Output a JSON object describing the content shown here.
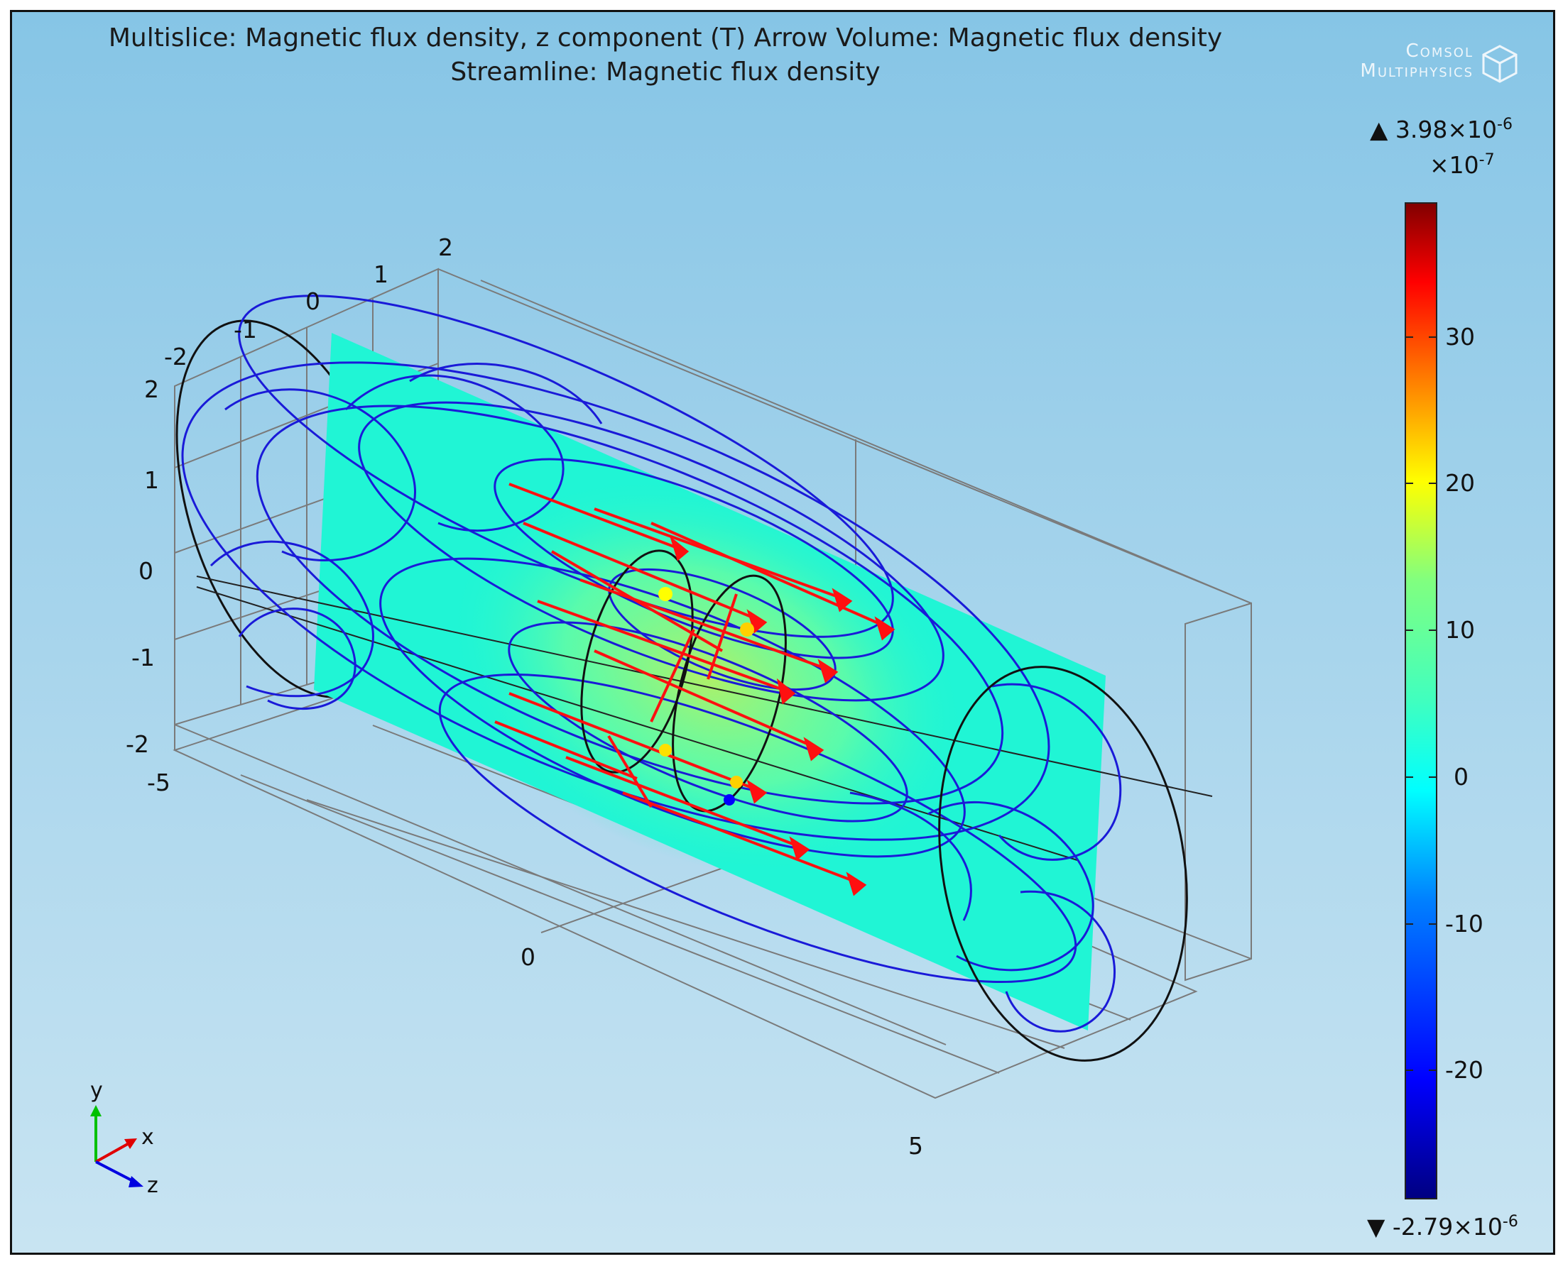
{
  "title": {
    "line1": "Multislice: Magnetic flux density, z component (T)  Arrow Volume: Magnetic flux density",
    "line2": "Streamline: Magnetic flux density"
  },
  "logo": {
    "line1": "Comsol",
    "line2": "Multiphysics"
  },
  "axes": {
    "z_ticks": [
      "-2",
      "-1",
      "0",
      "1",
      "2"
    ],
    "y_ticks": [
      "2",
      "1",
      "0",
      "-1",
      "-2"
    ],
    "x_ticks": [
      "-5",
      "0",
      "5"
    ]
  },
  "colorbar": {
    "max_label": "3.98×10",
    "max_exp": "-6",
    "min_label": "-2.79×10",
    "min_exp": "-6",
    "scale_label": "×10",
    "scale_exp": "-7",
    "ticks": [
      "30",
      "20",
      "10",
      "0",
      "-10",
      "-20"
    ],
    "colormap": [
      "#000080",
      "#0000ff",
      "#0080ff",
      "#00ffff",
      "#20f5d5",
      "#80ff80",
      "#ffff00",
      "#ff8000",
      "#ff0000",
      "#800000"
    ]
  },
  "triad": {
    "y": "y",
    "x": "x",
    "z": "z"
  },
  "colors": {
    "background_top": "#86c5e6",
    "background_bottom": "#c8e4f2",
    "slice": "#20f5d5",
    "streamline": "#1a1ad8",
    "arrow": "#ff1010"
  }
}
